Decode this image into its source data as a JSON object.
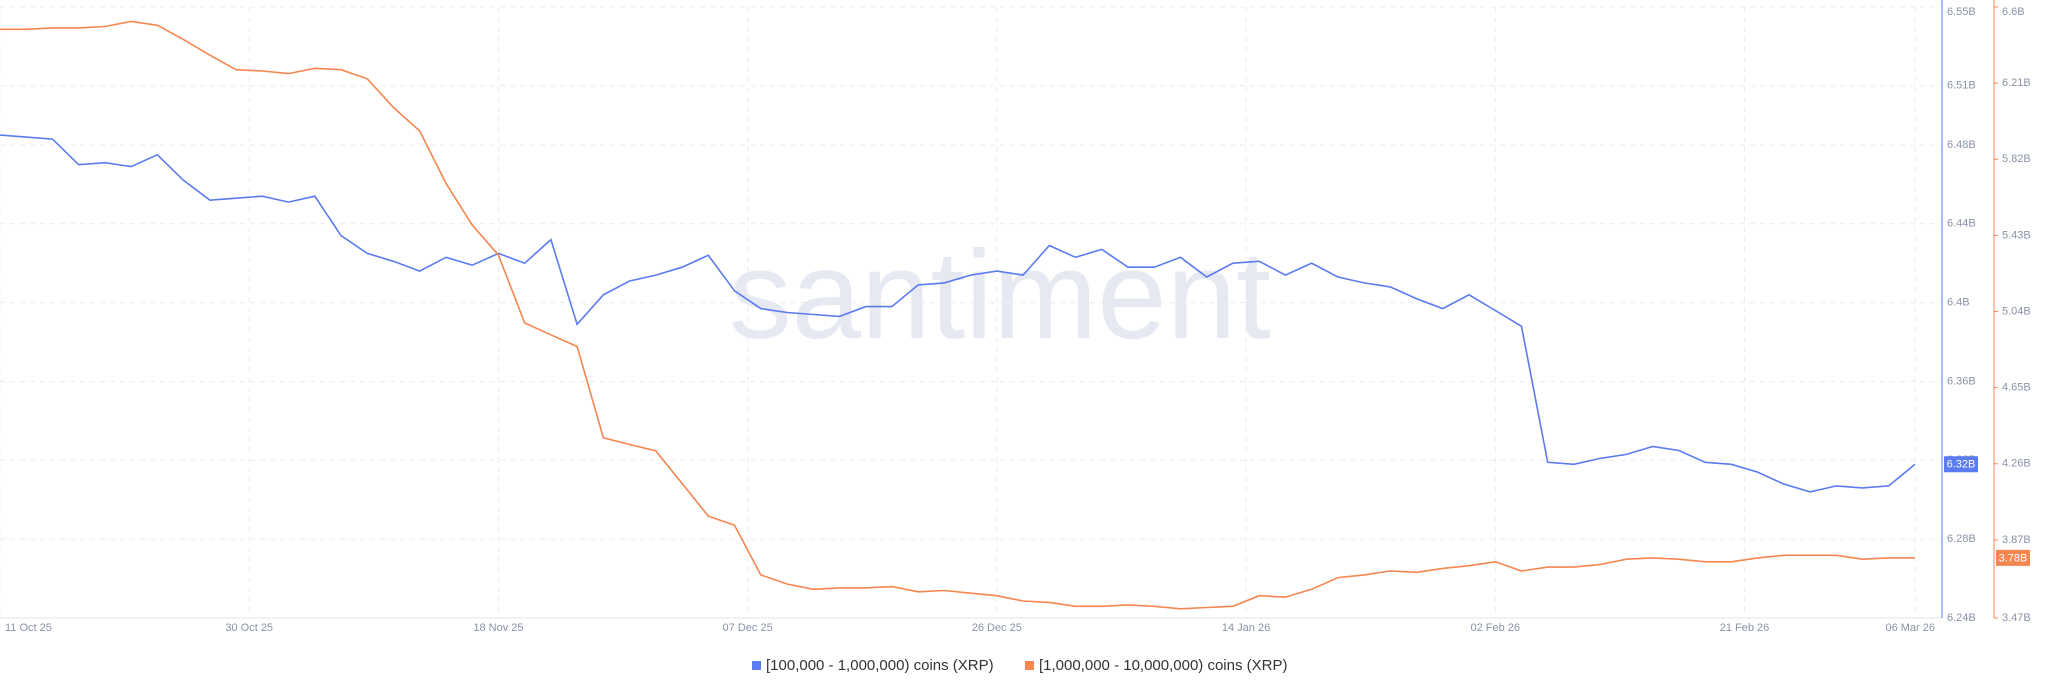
{
  "chart_data": {
    "type": "line",
    "watermark": "santiment",
    "x": [
      "2025-10-11",
      "2025-10-13",
      "2025-10-15",
      "2025-10-17",
      "2025-10-19",
      "2025-10-21",
      "2025-10-23",
      "2025-10-25",
      "2025-10-27",
      "2025-10-29",
      "2025-10-31",
      "2025-11-02",
      "2025-11-04",
      "2025-11-06",
      "2025-11-08",
      "2025-11-10",
      "2025-11-12",
      "2025-11-14",
      "2025-11-16",
      "2025-11-18",
      "2025-11-20",
      "2025-11-22",
      "2025-11-24",
      "2025-11-26",
      "2025-11-28",
      "2025-11-30",
      "2025-12-02",
      "2025-12-04",
      "2025-12-06",
      "2025-12-08",
      "2025-12-10",
      "2025-12-12",
      "2025-12-14",
      "2025-12-16",
      "2025-12-18",
      "2025-12-20",
      "2025-12-22",
      "2025-12-24",
      "2025-12-26",
      "2025-12-28",
      "2025-12-30",
      "2026-01-01",
      "2026-01-03",
      "2026-01-05",
      "2026-01-07",
      "2026-01-09",
      "2026-01-11",
      "2026-01-13",
      "2026-01-15",
      "2026-01-17",
      "2026-01-19",
      "2026-01-21",
      "2026-01-23",
      "2026-01-25",
      "2026-01-27",
      "2026-01-29",
      "2026-01-31",
      "2026-02-02",
      "2026-02-04",
      "2026-02-06",
      "2026-02-08",
      "2026-02-10",
      "2026-02-12",
      "2026-02-14",
      "2026-02-16",
      "2026-02-18",
      "2026-02-20",
      "2026-02-22",
      "2026-02-24",
      "2026-02-26",
      "2026-02-28",
      "2026-03-02",
      "2026-03-04",
      "2026-03-06"
    ],
    "xlim": [
      "2025-10-11",
      "2026-03-06"
    ],
    "xticks": [
      {
        "value": "2025-10-11",
        "label": "11 Oct 25"
      },
      {
        "value": "2025-10-30",
        "label": "30 Oct 25"
      },
      {
        "value": "2025-11-18",
        "label": "18 Nov 25"
      },
      {
        "value": "2025-12-07",
        "label": "07 Dec 25"
      },
      {
        "value": "2025-12-26",
        "label": "26 Dec 25"
      },
      {
        "value": "2026-01-14",
        "label": "14 Jan 26"
      },
      {
        "value": "2026-02-02",
        "label": "02 Feb 26"
      },
      {
        "value": "2026-02-21",
        "label": "21 Feb 26"
      },
      {
        "value": "2026-03-06",
        "label": "06 Mar 26"
      }
    ],
    "ylim": [
      6.24,
      6.55
    ],
    "yticks": [
      {
        "value": 6.24,
        "label": "6.24B"
      },
      {
        "value": 6.28,
        "label": "6.28B"
      },
      {
        "value": 6.32,
        "label": "6.32B"
      },
      {
        "value": 6.36,
        "label": "6.36B"
      },
      {
        "value": 6.4,
        "label": "6.4B"
      },
      {
        "value": 6.44,
        "label": "6.44B"
      },
      {
        "value": 6.48,
        "label": "6.48B"
      },
      {
        "value": 6.51,
        "label": "6.51B"
      },
      {
        "value": 6.55,
        "label": "6.55B"
      }
    ],
    "y2lim": [
      3.47,
      6.6
    ],
    "y2ticks": [
      {
        "value": 3.47,
        "label": "3.47B"
      },
      {
        "value": 3.87,
        "label": "3.87B"
      },
      {
        "value": 4.26,
        "label": "4.26B"
      },
      {
        "value": 4.65,
        "label": "4.65B"
      },
      {
        "value": 5.04,
        "label": "5.04B"
      },
      {
        "value": 5.43,
        "label": "5.43B"
      },
      {
        "value": 5.82,
        "label": "5.82B"
      },
      {
        "value": 6.21,
        "label": "6.21B"
      },
      {
        "value": 6.6,
        "label": "6.6B"
      }
    ],
    "grid": true,
    "series": [
      {
        "name": "[100,000 - 1,000,000) coins (XRP)",
        "color": "#5b7bf0",
        "axis": "y",
        "badge": "6.32B",
        "values": [
          6.485,
          6.484,
          6.483,
          6.47,
          6.471,
          6.469,
          6.475,
          6.462,
          6.452,
          6.453,
          6.454,
          6.451,
          6.454,
          6.434,
          6.425,
          6.421,
          6.416,
          6.423,
          6.419,
          6.425,
          6.42,
          6.432,
          6.389,
          6.404,
          6.411,
          6.414,
          6.418,
          6.424,
          6.406,
          6.397,
          6.395,
          6.394,
          6.393,
          6.398,
          6.398,
          6.409,
          6.41,
          6.414,
          6.416,
          6.414,
          6.429,
          6.423,
          6.427,
          6.418,
          6.418,
          6.423,
          6.413,
          6.42,
          6.421,
          6.414,
          6.42,
          6.413,
          6.41,
          6.408,
          6.402,
          6.397,
          6.404,
          6.396,
          6.388,
          6.319,
          6.318,
          6.321,
          6.323,
          6.327,
          6.325,
          6.319,
          6.318,
          6.314,
          6.308,
          6.304,
          6.307,
          6.306,
          6.307,
          6.318
        ]
      },
      {
        "name": "[1,000,000 - 10,000,000) coins (XRP)",
        "color": "#f5864f",
        "axis": "y2",
        "badge": "3.78B",
        "values": [
          6.486,
          6.486,
          6.493,
          6.493,
          6.5,
          6.526,
          6.506,
          6.433,
          6.353,
          6.279,
          6.272,
          6.259,
          6.286,
          6.279,
          6.232,
          6.085,
          5.965,
          5.697,
          5.483,
          5.329,
          4.981,
          4.921,
          4.861,
          4.393,
          4.359,
          4.326,
          4.159,
          3.992,
          3.945,
          3.691,
          3.644,
          3.617,
          3.624,
          3.624,
          3.631,
          3.604,
          3.611,
          3.597,
          3.584,
          3.557,
          3.55,
          3.53,
          3.53,
          3.537,
          3.53,
          3.517,
          3.524,
          3.53,
          3.584,
          3.577,
          3.617,
          3.677,
          3.691,
          3.711,
          3.704,
          3.724,
          3.738,
          3.758,
          3.711,
          3.731,
          3.731,
          3.744,
          3.771,
          3.778,
          3.771,
          3.758,
          3.758,
          3.778,
          3.791,
          3.791,
          3.791,
          3.771,
          3.778,
          3.778
        ]
      }
    ]
  }
}
